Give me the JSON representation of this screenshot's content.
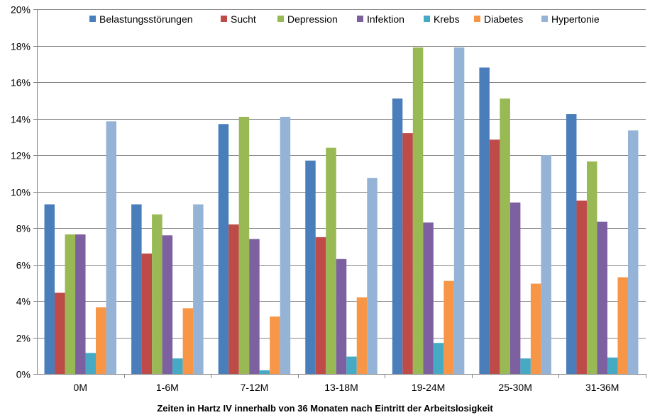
{
  "chart_data": {
    "type": "bar",
    "title": "",
    "xlabel": "Zeiten in Hartz IV innerhalb von 36 Monaten nach Eintritt der Arbeitslosigkeit",
    "ylabel": "",
    "ylim": [
      0,
      20
    ],
    "yticks": [
      0,
      2,
      4,
      6,
      8,
      10,
      12,
      14,
      16,
      18,
      20
    ],
    "ytick_format": "%",
    "grid": "horizontal",
    "legend_position": "top",
    "categories": [
      "0M",
      "1-6M",
      "7-12M",
      "13-18M",
      "19-24M",
      "25-30M",
      "31-36M"
    ],
    "series": [
      {
        "name": "Belastungsstörungen",
        "color": "#4a7ebb",
        "values": [
          9.3,
          9.3,
          13.7,
          11.7,
          15.1,
          16.8,
          14.25
        ]
      },
      {
        "name": "Sucht",
        "color": "#be4b48",
        "values": [
          4.45,
          6.6,
          8.2,
          7.5,
          13.2,
          12.85,
          9.5
        ]
      },
      {
        "name": "Depression",
        "color": "#98b954",
        "values": [
          7.65,
          8.75,
          14.1,
          12.4,
          17.9,
          15.1,
          11.65
        ]
      },
      {
        "name": "Infektion",
        "color": "#7d60a0",
        "values": [
          7.65,
          7.6,
          7.4,
          6.3,
          8.3,
          9.4,
          8.35
        ]
      },
      {
        "name": "Krebs",
        "color": "#46aac5",
        "values": [
          1.15,
          0.85,
          0.2,
          0.95,
          1.7,
          0.85,
          0.9
        ]
      },
      {
        "name": "Diabetes",
        "color": "#f79646",
        "values": [
          3.65,
          3.6,
          3.15,
          4.2,
          5.1,
          4.95,
          5.3
        ]
      },
      {
        "name": "Hypertonie",
        "color": "#95b3d7",
        "values": [
          13.85,
          9.3,
          14.1,
          10.75,
          17.9,
          12.0,
          13.35
        ]
      }
    ]
  }
}
